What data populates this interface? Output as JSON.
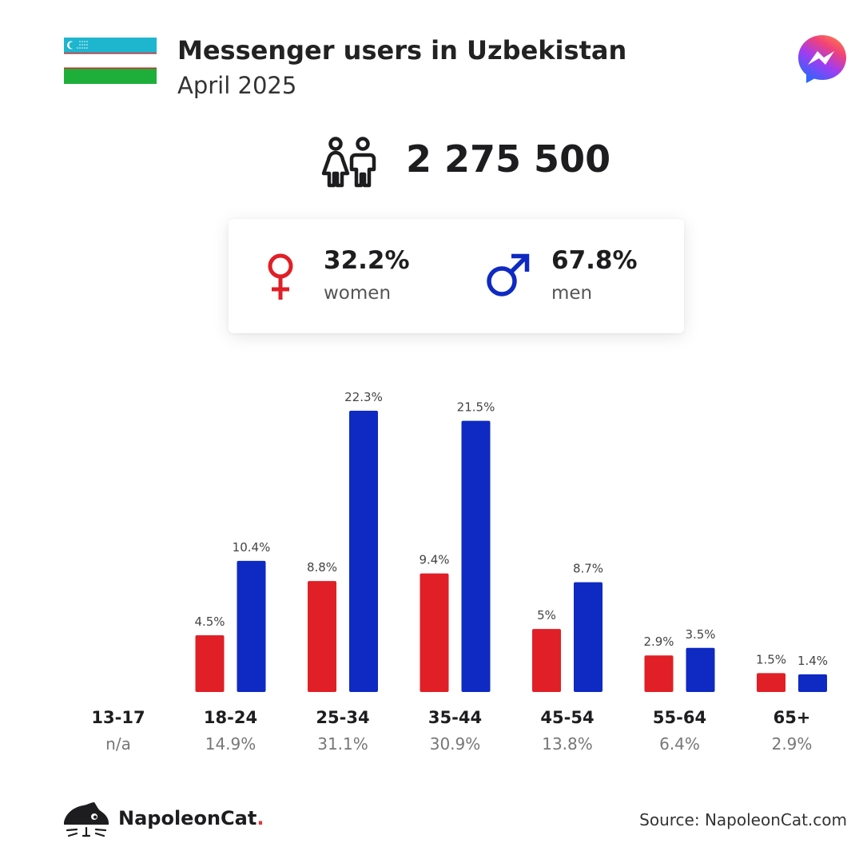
{
  "header": {
    "title": "Messenger users in Uzbekistan",
    "subtitle": "April 2025",
    "flag_icon": "uzbekistan-flag-icon",
    "logo_icon": "messenger-logo-icon"
  },
  "total": {
    "value": "2 275 500",
    "icon": "people-icon"
  },
  "gender": {
    "women": {
      "pct": "32.2%",
      "label": "women",
      "color": "#e01f26",
      "icon": "female-icon"
    },
    "men": {
      "pct": "67.8%",
      "label": "men",
      "color": "#0f2ac2",
      "icon": "male-icon"
    }
  },
  "chart_data": {
    "type": "bar",
    "categories": [
      "13-17",
      "18-24",
      "25-34",
      "35-44",
      "45-54",
      "55-64",
      "65+"
    ],
    "category_shares": [
      "n/a",
      "14.9%",
      "31.1%",
      "30.9%",
      "13.8%",
      "6.4%",
      "2.9%"
    ],
    "series": [
      {
        "name": "women",
        "color": "#e01f26",
        "values": [
          null,
          4.5,
          8.8,
          9.4,
          5,
          2.9,
          1.5
        ],
        "labels": [
          "",
          "4.5%",
          "8.8%",
          "9.4%",
          "5%",
          "2.9%",
          "1.5%"
        ]
      },
      {
        "name": "men",
        "color": "#0f2ac2",
        "values": [
          null,
          10.4,
          22.3,
          21.5,
          8.7,
          3.5,
          1.4
        ],
        "labels": [
          "",
          "10.4%",
          "22.3%",
          "21.5%",
          "8.7%",
          "3.5%",
          "1.4%"
        ]
      }
    ],
    "title": "",
    "xlabel": "",
    "ylabel": "",
    "ylim": [
      0,
      22.3
    ],
    "grid": false
  },
  "footer": {
    "brand": "NapoleonCat",
    "brand_dot": ".",
    "brand_icon": "napoleoncat-logo-icon",
    "source": "Source: NapoleonCat.com"
  }
}
